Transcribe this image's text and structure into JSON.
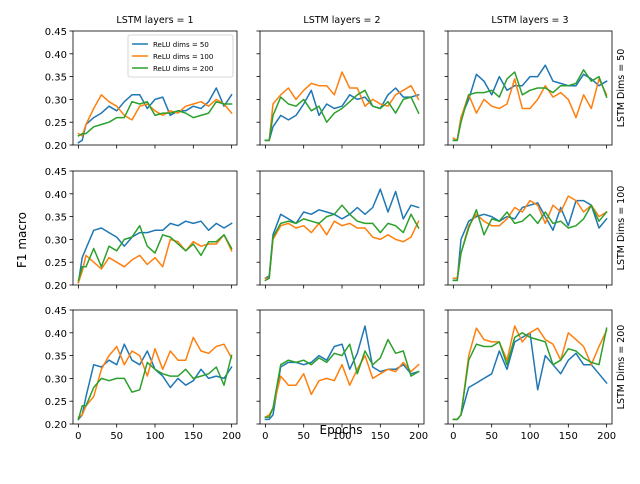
{
  "figure": {
    "ylabel": "F1 macro",
    "xlabel": "Epochs",
    "col_titles": [
      "LSTM layers = 1",
      "LSTM layers = 2",
      "LSTM layers = 3"
    ],
    "row_titles": [
      "LSTM Dims = 50",
      "LSTM Dims = 100",
      "LSTM Dims = 200"
    ],
    "legend": [
      {
        "name": "ReLU dims = 50",
        "color": "#1f77b4"
      },
      {
        "name": "ReLU dims = 100",
        "color": "#ff7f0e"
      },
      {
        "name": "ReLU dims = 200",
        "color": "#2ca02c"
      }
    ],
    "legend_placement": "top-right of first panel",
    "xticks": [
      "0",
      "50",
      "100",
      "150",
      "200"
    ],
    "yticks": [
      "0.20",
      "0.25",
      "0.30",
      "0.35",
      "0.40",
      "0.45"
    ]
  },
  "chart_data": {
    "type": "line",
    "xlim": [
      -7,
      207
    ],
    "ylim": [
      0.2,
      0.45
    ],
    "grid": false,
    "x": [
      0,
      5,
      10,
      20,
      30,
      40,
      50,
      60,
      70,
      80,
      90,
      100,
      110,
      120,
      130,
      140,
      150,
      160,
      170,
      180,
      190,
      200
    ],
    "panels": [
      {
        "row": 0,
        "col": 0,
        "series": [
          {
            "name": "ReLU dims = 50",
            "values": [
              0.205,
              0.21,
              0.245,
              0.26,
              0.27,
              0.285,
              0.275,
              0.295,
              0.31,
              0.31,
              0.28,
              0.3,
              0.305,
              0.265,
              0.275,
              0.275,
              0.285,
              0.28,
              0.295,
              0.325,
              0.285,
              0.31
            ]
          },
          {
            "name": "ReLU dims = 100",
            "values": [
              0.225,
              0.22,
              0.245,
              0.28,
              0.31,
              0.295,
              0.285,
              0.265,
              0.255,
              0.285,
              0.29,
              0.275,
              0.265,
              0.275,
              0.27,
              0.285,
              0.29,
              0.295,
              0.285,
              0.3,
              0.29,
              0.27
            ]
          },
          {
            "name": "ReLU dims = 200",
            "values": [
              0.22,
              0.225,
              0.225,
              0.24,
              0.245,
              0.25,
              0.26,
              0.26,
              0.295,
              0.29,
              0.295,
              0.265,
              0.27,
              0.27,
              0.275,
              0.27,
              0.26,
              0.265,
              0.27,
              0.295,
              0.29,
              0.29
            ]
          }
        ]
      },
      {
        "row": 0,
        "col": 1,
        "series": [
          {
            "name": "ReLU dims = 50",
            "values": [
              0.21,
              0.21,
              0.24,
              0.265,
              0.255,
              0.265,
              0.29,
              0.32,
              0.265,
              0.29,
              0.28,
              0.285,
              0.31,
              0.3,
              0.305,
              0.285,
              0.28,
              0.31,
              0.325,
              0.305,
              0.305,
              0.31
            ]
          },
          {
            "name": "ReLU dims = 100",
            "values": [
              0.21,
              0.21,
              0.29,
              0.31,
              0.325,
              0.3,
              0.32,
              0.335,
              0.33,
              0.33,
              0.31,
              0.36,
              0.325,
              0.325,
              0.285,
              0.3,
              0.29,
              0.285,
              0.31,
              0.32,
              0.33,
              0.3
            ]
          },
          {
            "name": "ReLU dims = 200",
            "values": [
              0.21,
              0.21,
              0.265,
              0.305,
              0.29,
              0.285,
              0.3,
              0.275,
              0.285,
              0.25,
              0.27,
              0.28,
              0.295,
              0.31,
              0.32,
              0.285,
              0.28,
              0.295,
              0.27,
              0.3,
              0.305,
              0.27
            ]
          }
        ]
      },
      {
        "row": 0,
        "col": 2,
        "series": [
          {
            "name": "ReLU dims = 50",
            "values": [
              0.21,
              0.21,
              0.26,
              0.3,
              0.355,
              0.34,
              0.31,
              0.35,
              0.32,
              0.33,
              0.33,
              0.35,
              0.35,
              0.375,
              0.34,
              0.335,
              0.33,
              0.33,
              0.355,
              0.345,
              0.33,
              0.34
            ]
          },
          {
            "name": "ReLU dims = 100",
            "values": [
              0.215,
              0.21,
              0.26,
              0.31,
              0.27,
              0.3,
              0.285,
              0.28,
              0.29,
              0.345,
              0.28,
              0.28,
              0.3,
              0.33,
              0.305,
              0.315,
              0.3,
              0.26,
              0.31,
              0.28,
              0.345,
              0.31
            ]
          },
          {
            "name": "ReLU dims = 200",
            "values": [
              0.21,
              0.21,
              0.25,
              0.31,
              0.315,
              0.315,
              0.32,
              0.305,
              0.345,
              0.36,
              0.31,
              0.32,
              0.325,
              0.325,
              0.315,
              0.33,
              0.33,
              0.335,
              0.365,
              0.34,
              0.35,
              0.305
            ]
          }
        ]
      },
      {
        "row": 1,
        "col": 0,
        "series": [
          {
            "name": "ReLU dims = 50",
            "values": [
              0.205,
              0.26,
              0.28,
              0.32,
              0.325,
              0.315,
              0.305,
              0.285,
              0.305,
              0.315,
              0.315,
              0.32,
              0.32,
              0.335,
              0.33,
              0.34,
              0.335,
              0.34,
              0.32,
              0.335,
              0.325,
              0.335
            ]
          },
          {
            "name": "ReLU dims = 100",
            "values": [
              0.205,
              0.23,
              0.265,
              0.25,
              0.235,
              0.26,
              0.25,
              0.24,
              0.255,
              0.265,
              0.245,
              0.26,
              0.24,
              0.3,
              0.295,
              0.275,
              0.295,
              0.285,
              0.29,
              0.29,
              0.31,
              0.275
            ]
          },
          {
            "name": "ReLU dims = 200",
            "values": [
              0.21,
              0.24,
              0.24,
              0.28,
              0.24,
              0.285,
              0.275,
              0.3,
              0.305,
              0.33,
              0.285,
              0.27,
              0.31,
              0.305,
              0.29,
              0.275,
              0.29,
              0.265,
              0.295,
              0.295,
              0.31,
              0.28
            ]
          }
        ]
      },
      {
        "row": 1,
        "col": 1,
        "series": [
          {
            "name": "ReLU dims = 50",
            "values": [
              0.215,
              0.22,
              0.31,
              0.355,
              0.345,
              0.335,
              0.36,
              0.355,
              0.365,
              0.36,
              0.355,
              0.345,
              0.355,
              0.37,
              0.355,
              0.37,
              0.41,
              0.36,
              0.405,
              0.345,
              0.375,
              0.37
            ]
          },
          {
            "name": "ReLU dims = 100",
            "values": [
              0.215,
              0.215,
              0.3,
              0.33,
              0.335,
              0.325,
              0.33,
              0.315,
              0.335,
              0.31,
              0.34,
              0.33,
              0.335,
              0.325,
              0.325,
              0.305,
              0.3,
              0.31,
              0.3,
              0.295,
              0.305,
              0.34
            ]
          },
          {
            "name": "ReLU dims = 200",
            "values": [
              0.21,
              0.215,
              0.305,
              0.335,
              0.34,
              0.335,
              0.345,
              0.34,
              0.335,
              0.35,
              0.355,
              0.375,
              0.355,
              0.34,
              0.335,
              0.335,
              0.315,
              0.335,
              0.33,
              0.315,
              0.355,
              0.325
            ]
          }
        ]
      },
      {
        "row": 1,
        "col": 2,
        "series": [
          {
            "name": "ReLU dims = 50",
            "values": [
              0.21,
              0.21,
              0.3,
              0.34,
              0.35,
              0.355,
              0.35,
              0.34,
              0.35,
              0.345,
              0.37,
              0.375,
              0.38,
              0.35,
              0.32,
              0.37,
              0.33,
              0.385,
              0.385,
              0.375,
              0.325,
              0.345
            ]
          },
          {
            "name": "ReLU dims = 100",
            "values": [
              0.215,
              0.215,
              0.27,
              0.33,
              0.355,
              0.34,
              0.33,
              0.33,
              0.345,
              0.37,
              0.36,
              0.385,
              0.375,
              0.335,
              0.375,
              0.36,
              0.395,
              0.385,
              0.36,
              0.375,
              0.35,
              0.36
            ]
          },
          {
            "name": "ReLU dims = 200",
            "values": [
              0.21,
              0.21,
              0.27,
              0.325,
              0.365,
              0.31,
              0.345,
              0.34,
              0.36,
              0.335,
              0.34,
              0.355,
              0.335,
              0.36,
              0.335,
              0.34,
              0.325,
              0.33,
              0.345,
              0.375,
              0.34,
              0.36
            ]
          }
        ]
      },
      {
        "row": 2,
        "col": 0,
        "series": [
          {
            "name": "ReLU dims = 50",
            "values": [
              0.21,
              0.22,
              0.26,
              0.33,
              0.325,
              0.34,
              0.33,
              0.375,
              0.34,
              0.33,
              0.36,
              0.32,
              0.305,
              0.28,
              0.3,
              0.285,
              0.295,
              0.32,
              0.3,
              0.305,
              0.3,
              0.325
            ]
          },
          {
            "name": "ReLU dims = 100",
            "values": [
              0.215,
              0.22,
              0.24,
              0.26,
              0.32,
              0.35,
              0.37,
              0.33,
              0.36,
              0.35,
              0.305,
              0.365,
              0.32,
              0.36,
              0.34,
              0.34,
              0.39,
              0.36,
              0.355,
              0.37,
              0.375,
              0.345
            ]
          },
          {
            "name": "ReLU dims = 200",
            "values": [
              0.21,
              0.24,
              0.24,
              0.28,
              0.3,
              0.295,
              0.3,
              0.3,
              0.27,
              0.275,
              0.335,
              0.32,
              0.31,
              0.305,
              0.305,
              0.32,
              0.3,
              0.305,
              0.31,
              0.325,
              0.285,
              0.35
            ]
          }
        ]
      },
      {
        "row": 2,
        "col": 1,
        "series": [
          {
            "name": "ReLU dims = 50",
            "values": [
              0.21,
              0.21,
              0.22,
              0.325,
              0.335,
              0.335,
              0.33,
              0.335,
              0.35,
              0.34,
              0.37,
              0.375,
              0.32,
              0.355,
              0.415,
              0.325,
              0.315,
              0.32,
              0.32,
              0.33,
              0.31,
              0.315
            ]
          },
          {
            "name": "ReLU dims = 100",
            "values": [
              0.215,
              0.22,
              0.235,
              0.305,
              0.285,
              0.285,
              0.31,
              0.265,
              0.295,
              0.3,
              0.295,
              0.33,
              0.285,
              0.32,
              0.35,
              0.3,
              0.31,
              0.32,
              0.315,
              0.335,
              0.315,
              0.33
            ]
          },
          {
            "name": "ReLU dims = 200",
            "values": [
              0.215,
              0.215,
              0.235,
              0.33,
              0.34,
              0.335,
              0.34,
              0.33,
              0.345,
              0.335,
              0.355,
              0.35,
              0.375,
              0.31,
              0.36,
              0.33,
              0.345,
              0.385,
              0.355,
              0.36,
              0.305,
              0.315
            ]
          }
        ]
      },
      {
        "row": 2,
        "col": 2,
        "series": [
          {
            "name": "ReLU dims = 50",
            "values": [
              0.21,
              0.21,
              0.22,
              0.28,
              0.29,
              0.3,
              0.31,
              0.36,
              0.32,
              0.38,
              0.39,
              0.4,
              0.275,
              0.35,
              0.33,
              0.31,
              0.34,
              0.355,
              0.33,
              0.33,
              0.31,
              0.29
            ]
          },
          {
            "name": "ReLU dims = 100",
            "values": [
              0.21,
              0.21,
              0.22,
              0.35,
              0.41,
              0.385,
              0.38,
              0.38,
              0.34,
              0.415,
              0.38,
              0.4,
              0.41,
              0.385,
              0.375,
              0.34,
              0.4,
              0.385,
              0.37,
              0.33,
              0.37,
              0.405
            ]
          },
          {
            "name": "ReLU dims = 200",
            "values": [
              0.21,
              0.21,
              0.22,
              0.34,
              0.375,
              0.37,
              0.37,
              0.38,
              0.33,
              0.39,
              0.4,
              0.39,
              0.385,
              0.38,
              0.33,
              0.34,
              0.365,
              0.36,
              0.345,
              0.335,
              0.33,
              0.41
            ]
          }
        ]
      }
    ]
  }
}
